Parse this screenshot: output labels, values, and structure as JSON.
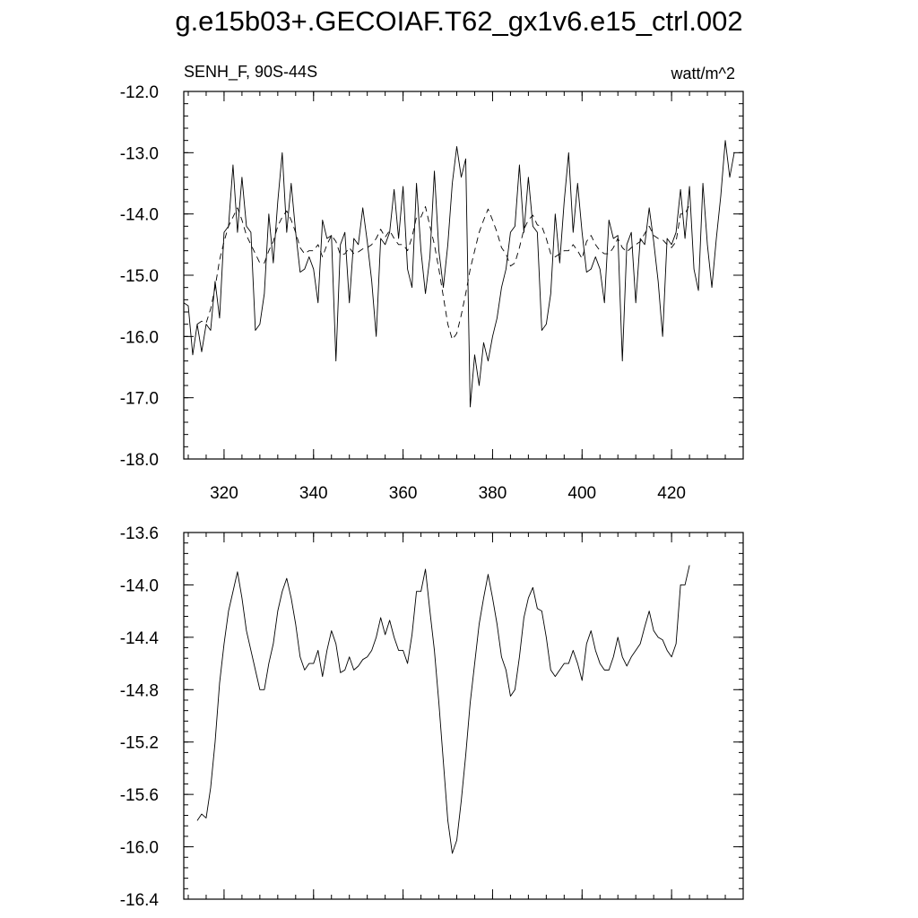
{
  "title": "g.e15b03+.GECOIAF.T62_gx1v6.e15_ctrl.002",
  "chart_data": [
    {
      "type": "line",
      "left_label": "SENH_F, 90S-44S",
      "right_label": "watt/m^2",
      "xlim": [
        311,
        436
      ],
      "ylim": [
        -18.0,
        -12.0
      ],
      "x_ticks": [
        320,
        340,
        360,
        380,
        400,
        420
      ],
      "x_tick_labels": [
        "320",
        "340",
        "360",
        "380",
        "400",
        "420"
      ],
      "y_ticks": [
        -12.0,
        -13.0,
        -14.0,
        -15.0,
        -16.0,
        -17.0,
        -18.0
      ],
      "y_tick_labels": [
        "-12.0",
        "-13.0",
        "-14.0",
        "-15.0",
        "-16.0",
        "-17.0",
        "-18.0"
      ],
      "grid": false,
      "series": [
        {
          "style": "solid",
          "x_start": 311,
          "values": [
            -15.45,
            -15.5,
            -16.3,
            -15.8,
            -16.25,
            -15.8,
            -15.9,
            -15.1,
            -15.7,
            -14.3,
            -14.2,
            -13.2,
            -14.3,
            -13.4,
            -14.2,
            -14.3,
            -15.9,
            -15.8,
            -15.3,
            -14.0,
            -14.8,
            -13.8,
            -13.0,
            -14.3,
            -13.5,
            -14.3,
            -14.95,
            -14.9,
            -14.7,
            -14.9,
            -15.45,
            -14.1,
            -14.4,
            -14.35,
            -16.4,
            -14.5,
            -14.3,
            -15.45,
            -14.4,
            -14.5,
            -13.9,
            -14.45,
            -15.1,
            -16.0,
            -14.4,
            -14.5,
            -14.3,
            -13.6,
            -14.4,
            -13.55,
            -14.9,
            -15.2,
            -13.5,
            -14.6,
            -15.3,
            -14.7,
            -13.3,
            -14.6,
            -15.2,
            -14.5,
            -13.5,
            -12.9,
            -13.4,
            -13.1,
            -17.15,
            -16.3,
            -16.8,
            -16.1,
            -16.4,
            -16.0,
            -15.7,
            -15.2,
            -14.9,
            -14.3,
            -14.2,
            -13.2,
            -14.3,
            -13.4,
            -14.2,
            -14.3,
            -15.9,
            -15.8,
            -15.3,
            -14.0,
            -14.8,
            -13.8,
            -13.0,
            -14.3,
            -13.5,
            -14.3,
            -14.95,
            -14.9,
            -14.7,
            -14.9,
            -15.45,
            -14.1,
            -14.4,
            -14.35,
            -16.4,
            -14.5,
            -14.3,
            -15.45,
            -14.4,
            -14.5,
            -13.9,
            -14.45,
            -15.1,
            -16.0,
            -14.4,
            -14.5,
            -14.3,
            -13.6,
            -14.4,
            -13.55,
            -14.9,
            -15.25,
            -13.5,
            -14.5,
            -15.2,
            -14.4,
            -13.7,
            -12.8,
            -13.4,
            -13.0
          ]
        },
        {
          "style": "dashed",
          "x_start": 314,
          "values": [
            -15.8,
            -15.75,
            -15.78,
            -15.55,
            -15.2,
            -14.75,
            -14.45,
            -14.2,
            -14.05,
            -13.9,
            -14.1,
            -14.35,
            -14.5,
            -14.65,
            -14.8,
            -14.8,
            -14.6,
            -14.45,
            -14.2,
            -14.05,
            -13.95,
            -14.1,
            -14.3,
            -14.55,
            -14.65,
            -14.6,
            -14.6,
            -14.5,
            -14.7,
            -14.5,
            -14.35,
            -14.45,
            -14.67,
            -14.65,
            -14.55,
            -14.65,
            -14.62,
            -14.57,
            -14.55,
            -14.5,
            -14.4,
            -14.25,
            -14.38,
            -14.27,
            -14.4,
            -14.5,
            -14.5,
            -14.6,
            -14.38,
            -14.05,
            -14.05,
            -13.88,
            -14.2,
            -14.5,
            -14.9,
            -15.35,
            -15.8,
            -16.05,
            -15.95,
            -15.65,
            -15.3,
            -14.9,
            -14.6,
            -14.3,
            -14.1,
            -13.92,
            -14.1,
            -14.3,
            -14.55,
            -14.65,
            -14.85,
            -14.8,
            -14.55,
            -14.25,
            -14.1,
            -14.02,
            -14.18,
            -14.2,
            -14.4,
            -14.65,
            -14.7,
            -14.65,
            -14.6,
            -14.6,
            -14.5,
            -14.6,
            -14.73,
            -14.45,
            -14.35,
            -14.5,
            -14.6,
            -14.65,
            -14.65,
            -14.55,
            -14.4,
            -14.55,
            -14.62,
            -14.55,
            -14.5,
            -14.45,
            -14.32,
            -14.2,
            -14.35,
            -14.4,
            -14.42,
            -14.5,
            -14.55,
            -14.45,
            -14.0,
            -14.0,
            -13.85
          ]
        }
      ]
    },
    {
      "type": "line",
      "xlim": [
        311,
        436
      ],
      "ylim": [
        -16.4,
        -13.6
      ],
      "x_ticks": [
        320,
        340,
        360,
        380,
        400,
        420
      ],
      "y_ticks": [
        -13.6,
        -14.0,
        -14.4,
        -14.8,
        -15.2,
        -15.6,
        -16.0,
        -16.4
      ],
      "y_tick_labels": [
        "-13.6",
        "-14.0",
        "-14.4",
        "-14.8",
        "-15.2",
        "-15.6",
        "-16.0",
        "-16.4"
      ],
      "grid": false,
      "series": [
        {
          "style": "solid",
          "x_start": 314,
          "values": [
            -15.8,
            -15.75,
            -15.78,
            -15.55,
            -15.2,
            -14.75,
            -14.45,
            -14.2,
            -14.05,
            -13.9,
            -14.1,
            -14.35,
            -14.5,
            -14.65,
            -14.8,
            -14.8,
            -14.6,
            -14.45,
            -14.2,
            -14.05,
            -13.95,
            -14.1,
            -14.3,
            -14.55,
            -14.65,
            -14.6,
            -14.6,
            -14.5,
            -14.7,
            -14.5,
            -14.35,
            -14.45,
            -14.67,
            -14.65,
            -14.55,
            -14.65,
            -14.62,
            -14.57,
            -14.55,
            -14.5,
            -14.4,
            -14.25,
            -14.38,
            -14.27,
            -14.4,
            -14.5,
            -14.5,
            -14.6,
            -14.38,
            -14.05,
            -14.05,
            -13.88,
            -14.2,
            -14.5,
            -14.9,
            -15.35,
            -15.8,
            -16.05,
            -15.95,
            -15.65,
            -15.3,
            -14.9,
            -14.6,
            -14.3,
            -14.1,
            -13.92,
            -14.1,
            -14.3,
            -14.55,
            -14.65,
            -14.85,
            -14.8,
            -14.55,
            -14.25,
            -14.1,
            -14.02,
            -14.18,
            -14.2,
            -14.4,
            -14.65,
            -14.7,
            -14.65,
            -14.6,
            -14.6,
            -14.5,
            -14.6,
            -14.73,
            -14.45,
            -14.35,
            -14.5,
            -14.6,
            -14.65,
            -14.65,
            -14.55,
            -14.4,
            -14.55,
            -14.62,
            -14.55,
            -14.5,
            -14.45,
            -14.32,
            -14.2,
            -14.35,
            -14.4,
            -14.42,
            -14.5,
            -14.55,
            -14.45,
            -14.0,
            -14.0,
            -13.85
          ]
        }
      ]
    }
  ]
}
